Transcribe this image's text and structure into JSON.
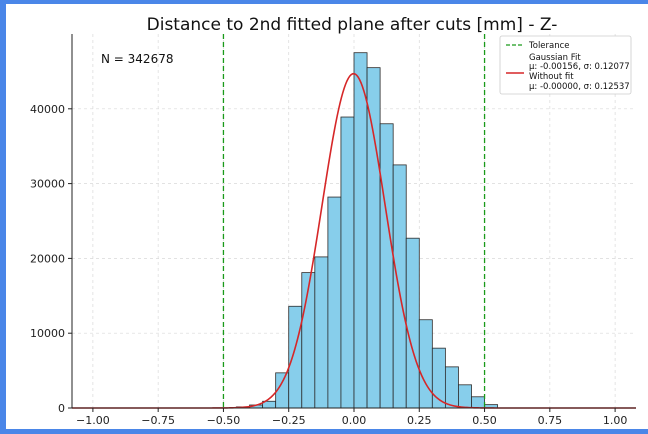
{
  "chart_data": {
    "type": "bar",
    "title": "Distance to 2nd fitted plane after cuts [mm] - Z-",
    "xlabel": "",
    "ylabel": "",
    "xlim": [
      -1.08,
      1.08
    ],
    "ylim": [
      0,
      50000
    ],
    "xticks": [
      -1.0,
      -0.75,
      -0.5,
      -0.25,
      0.0,
      0.25,
      0.5,
      0.75,
      1.0
    ],
    "xtick_labels": [
      "−1.00",
      "−0.75",
      "−0.50",
      "−0.25",
      "0.00",
      "0.25",
      "0.50",
      "0.75",
      "1.00"
    ],
    "yticks": [
      0,
      10000,
      20000,
      30000,
      40000
    ],
    "ytick_labels": [
      "0",
      "10000",
      "20000",
      "30000",
      "40000"
    ],
    "grid": true,
    "annotation": "N = 342678",
    "bin_width": 0.05,
    "bins": [
      {
        "x0": -0.45,
        "value": 150
      },
      {
        "x0": -0.4,
        "value": 400
      },
      {
        "x0": -0.35,
        "value": 900
      },
      {
        "x0": -0.3,
        "value": 4700
      },
      {
        "x0": -0.25,
        "value": 13600
      },
      {
        "x0": -0.2,
        "value": 18100
      },
      {
        "x0": -0.15,
        "value": 20200
      },
      {
        "x0": -0.1,
        "value": 28200
      },
      {
        "x0": -0.05,
        "value": 38900
      },
      {
        "x0": 0.0,
        "value": 47500
      },
      {
        "x0": 0.05,
        "value": 45500
      },
      {
        "x0": 0.1,
        "value": 38000
      },
      {
        "x0": 0.15,
        "value": 32500
      },
      {
        "x0": 0.2,
        "value": 22700
      },
      {
        "x0": 0.25,
        "value": 11800
      },
      {
        "x0": 0.3,
        "value": 8000
      },
      {
        "x0": 0.35,
        "value": 5500
      },
      {
        "x0": 0.4,
        "value": 3100
      },
      {
        "x0": 0.45,
        "value": 1500
      },
      {
        "x0": 0.5,
        "value": 450
      }
    ],
    "tolerance": {
      "label": "Tolerance",
      "values": [
        -0.5,
        0.5
      ],
      "color": "#1a9a1a"
    },
    "gaussian_fit": {
      "label": "Gaussian Fit",
      "stats": "μ: -0.00156, σ: 0.12077",
      "mu": -0.00156,
      "sigma": 0.12077,
      "peak": 44700,
      "color": "#d62728"
    },
    "without_fit": {
      "label": "Without fit",
      "stats": "μ: -0.00000, σ: 0.12537"
    },
    "bar_fill": "#87ceeb",
    "bar_stroke": "#2b2b2b",
    "legend_position": "top-right"
  }
}
